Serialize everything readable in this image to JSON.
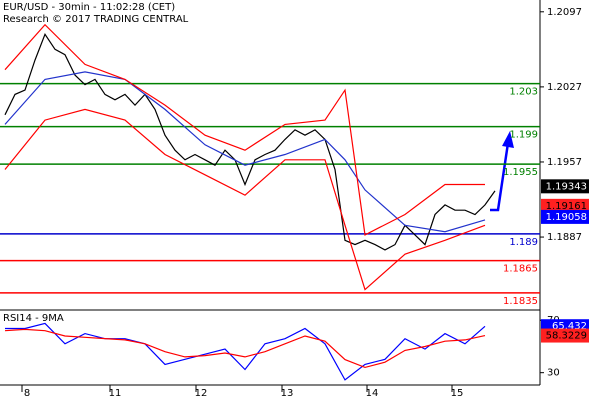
{
  "chart_data": [
    {
      "type": "line",
      "title": "EUR/USD - 30min - 11:02:28 (CET)",
      "subtitle": "Research © 2017 TRADING CENTRAL",
      "xlim": [
        -0.5,
        53.5
      ],
      "ylim": [
        1.1819,
        1.2108
      ],
      "yticks": [
        1.2097,
        1.2027,
        1.1957,
        1.1887
      ],
      "xticks": [
        {
          "value": 2.2,
          "label": "8"
        },
        {
          "value": 11,
          "label": "11"
        },
        {
          "value": 19.6,
          "label": "12"
        },
        {
          "value": 28.2,
          "label": "13"
        },
        {
          "value": 36.7,
          "label": "14"
        },
        {
          "value": 45.2,
          "label": "15"
        }
      ],
      "levels": [
        {
          "value": 1.203,
          "color": "#008000"
        },
        {
          "value": 1.199,
          "color": "#008000"
        },
        {
          "value": 1.1955,
          "color": "#008000"
        },
        {
          "value": 1.189,
          "color": "#0000cc"
        },
        {
          "value": 1.1865,
          "color": "#ff0000"
        },
        {
          "value": 1.1835,
          "color": "#ff0000"
        }
      ],
      "price_tags": [
        {
          "value": 1.19343,
          "color": "#000000"
        },
        {
          "value": 1.19161,
          "color": "#ff2020"
        },
        {
          "value": 1.19058,
          "color": "#0000ff"
        }
      ],
      "series": [
        {
          "color": "#000000",
          "values": [
            1.2001,
            1.202,
            1.2024,
            1.2052,
            1.2076,
            1.2062,
            1.2057,
            1.2038,
            1.2029,
            1.2034,
            1.202,
            1.2015,
            1.202,
            1.201,
            1.202,
            1.2006,
            1.1982,
            1.1968,
            1.1959,
            1.1964,
            1.1959,
            1.1954,
            1.1968,
            1.1959,
            1.1936,
            1.1959,
            1.1964,
            1.1968,
            1.1978,
            1.1987,
            1.1982,
            1.1987,
            1.1978,
            1.195,
            1.1884,
            1.188,
            1.1884,
            1.188,
            1.1875,
            1.188,
            1.1898,
            1.1889,
            1.188,
            1.1908,
            1.1917,
            1.1912,
            1.1912,
            1.1908,
            1.1917,
            1.193
          ]
        },
        {
          "color": "#2233cc",
          "x": [
            0,
            4,
            8,
            12,
            16,
            20,
            24,
            28,
            32,
            34,
            36,
            40,
            44,
            48
          ],
          "values": [
            1.1992,
            1.2034,
            1.2041,
            1.2034,
            1.2006,
            1.1973,
            1.1954,
            1.1964,
            1.1978,
            1.1959,
            1.1931,
            1.1898,
            1.1892,
            1.1903
          ]
        },
        {
          "color": "#ff0000",
          "x": [
            0,
            4,
            8,
            12,
            16,
            20,
            24,
            28,
            32,
            34,
            36,
            40,
            44,
            48
          ],
          "values": [
            1.2043,
            1.2085,
            1.2048,
            1.2034,
            1.201,
            1.1982,
            1.1968,
            1.1992,
            1.1996,
            1.2024,
            1.1889,
            1.1908,
            1.1936,
            1.1936
          ]
        },
        {
          "color": "#ff0000",
          "x": [
            0,
            4,
            8,
            12,
            16,
            20,
            24,
            28,
            32,
            34,
            36,
            40,
            44,
            48
          ],
          "values": [
            1.195,
            1.1996,
            1.2006,
            1.1996,
            1.1964,
            1.1945,
            1.1926,
            1.1959,
            1.1959,
            1.1898,
            1.1838,
            1.1871,
            1.1884,
            1.1898
          ]
        }
      ]
    },
    {
      "type": "line",
      "title": "RSI14 - 9MA",
      "xlim": [
        -0.5,
        53.5
      ],
      "ylim": [
        20.6,
        77.8
      ],
      "yticks": [
        70,
        30
      ],
      "price_tags": [
        {
          "value": 65.432,
          "color": "#0000ff"
        },
        {
          "value": 58.3229,
          "color": "#ff2020"
        }
      ],
      "series": [
        {
          "color": "#0000ff",
          "x": [
            0,
            2,
            4,
            6,
            8,
            10,
            12,
            14,
            16,
            18,
            20,
            22,
            24,
            26,
            28,
            30,
            32,
            34,
            36,
            38,
            40,
            42,
            44,
            46,
            48
          ],
          "values": [
            63.7,
            63.7,
            67.6,
            52.0,
            59.8,
            55.9,
            55.9,
            52.0,
            36.3,
            40.2,
            44.1,
            48.0,
            32.4,
            52.0,
            55.9,
            63.7,
            52.0,
            24.5,
            36.3,
            40.2,
            55.9,
            48.0,
            59.8,
            52.0,
            65.4
          ]
        },
        {
          "color": "#ff0000",
          "x": [
            0,
            2,
            4,
            6,
            8,
            10,
            12,
            14,
            16,
            18,
            20,
            22,
            24,
            26,
            28,
            30,
            32,
            34,
            36,
            38,
            40,
            42,
            44,
            46,
            48
          ],
          "values": [
            62,
            63,
            62,
            58,
            57,
            56,
            55,
            52,
            46,
            42,
            43,
            45,
            42,
            46,
            52,
            58,
            54,
            40,
            34,
            38,
            47,
            50,
            54,
            55,
            58.3
          ]
        }
      ]
    }
  ]
}
